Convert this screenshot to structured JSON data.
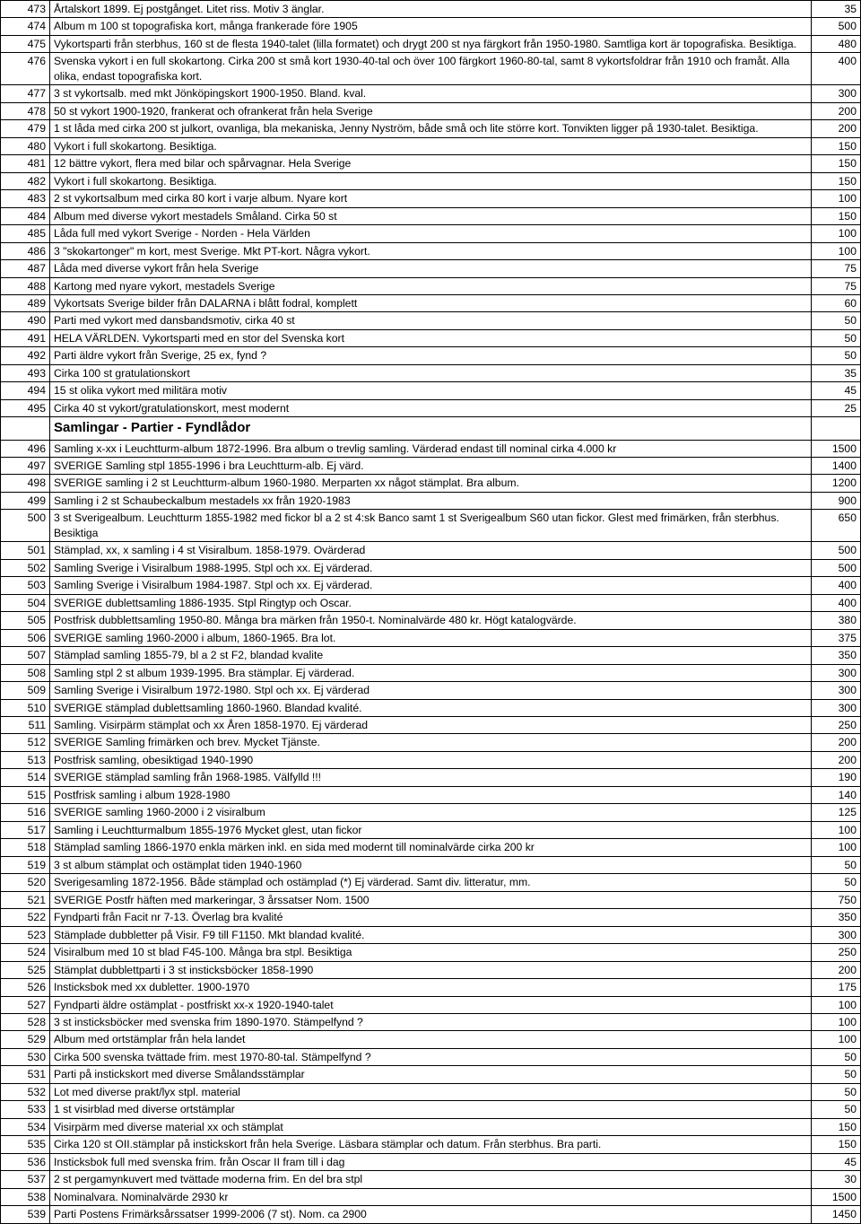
{
  "section_header": "Samlingar - Partier - Fyndlådor",
  "rows": [
    {
      "n": "473",
      "d": "Årtalskort 1899. Ej postgånget. Litet riss. Motiv 3 änglar.",
      "p": "35"
    },
    {
      "n": "474",
      "d": "Album m 100 st topografiska kort, många frankerade före 1905",
      "p": "500"
    },
    {
      "n": "475",
      "d": "Vykortsparti från sterbhus, 160 st de flesta 1940-talet (lilla formatet) och drygt 200 st nya färgkort från 1950-1980. Samtliga kort är topografiska. Besiktiga.",
      "p": "480"
    },
    {
      "n": "476",
      "d": "Svenska vykort i en full skokartong. Cirka 200 st små kort 1930-40-tal och över 100 färgkort 1960-80-tal, samt 8 vykortsfoldrar från 1910 och framåt. Alla olika, endast topografiska kort.",
      "p": "400"
    },
    {
      "n": "477",
      "d": "3 st vykortsalb. med mkt Jönköpingskort 1900-1950. Bland. kval.",
      "p": "300"
    },
    {
      "n": "478",
      "d": "50 st vykort 1900-1920, frankerat och ofrankerat från hela Sverige",
      "p": "200"
    },
    {
      "n": "479",
      "d": "1 st låda med cirka 200 st julkort, ovanliga, bla mekaniska, Jenny Nyström, både små och lite större kort. Tonvikten ligger på 1930-talet. Besiktiga.",
      "p": "200"
    },
    {
      "n": "480",
      "d": "Vykort i full skokartong. Besiktiga.",
      "p": "150"
    },
    {
      "n": "481",
      "d": "12 bättre vykort, flera med bilar och spårvagnar. Hela Sverige",
      "p": "150"
    },
    {
      "n": "482",
      "d": "Vykort i full skokartong. Besiktiga.",
      "p": "150"
    },
    {
      "n": "483",
      "d": "2 st vykortsalbum med cirka 80 kort i varje album. Nyare kort",
      "p": "100"
    },
    {
      "n": "484",
      "d": "Album med diverse vykort mestadels Småland. Cirka 50 st",
      "p": "150"
    },
    {
      "n": "485",
      "d": "Låda full med vykort Sverige - Norden - Hela Världen",
      "p": "100"
    },
    {
      "n": "486",
      "d": "3 \"skokartonger\" m kort, mest Sverige. Mkt PT-kort. Några vykort.",
      "p": "100"
    },
    {
      "n": "487",
      "d": "Låda med diverse vykort från hela Sverige",
      "p": "75"
    },
    {
      "n": "488",
      "d": "Kartong med nyare vykort, mestadels Sverige",
      "p": "75"
    },
    {
      "n": "489",
      "d": "Vykortsats Sverige bilder från DALARNA i blått fodral, komplett",
      "p": "60"
    },
    {
      "n": "490",
      "d": "Parti med vykort med dansbandsmotiv, cirka 40 st",
      "p": "50"
    },
    {
      "n": "491",
      "d": "HELA VÄRLDEN. Vykortsparti med en stor del Svenska kort",
      "p": "50"
    },
    {
      "n": "492",
      "d": "Parti äldre vykort från Sverige, 25 ex, fynd ?",
      "p": "50"
    },
    {
      "n": "493",
      "d": "Cirka 100 st gratulationskort",
      "p": "35"
    },
    {
      "n": "494",
      "d": "15 st olika vykort med militära motiv",
      "p": "45"
    },
    {
      "n": "495",
      "d": "Cirka 40 st vykort/gratulationskort, mest modernt",
      "p": "25"
    },
    {
      "header": true
    },
    {
      "n": "496",
      "d": "Samling x-xx i Leuchtturm-album 1872-1996. Bra album o trevlig samling. Värderad endast till nominal cirka 4.000 kr",
      "p": "1500"
    },
    {
      "n": "497",
      "d": "SVERIGE Samling stpl 1855-1996 i bra Leuchtturm-alb. Ej värd.",
      "p": "1400"
    },
    {
      "n": "498",
      "d": "SVERIGE samling i 2 st Leuchtturm-album 1960-1980. Merparten xx något stämplat. Bra album.",
      "p": "1200"
    },
    {
      "n": "499",
      "d": "Samling i 2 st Schaubeckalbum mestadels xx från 1920-1983",
      "p": "900"
    },
    {
      "n": "500",
      "d": "3 st Sverigealbum. Leuchtturm 1855-1982 med fickor bl a 2 st 4:sk Banco samt 1 st Sverigealbum S60 utan fickor. Glest med frimärken, från sterbhus. Besiktiga",
      "p": "650"
    },
    {
      "n": "501",
      "d": "Stämplad, xx, x samling i 4 st Visiralbum. 1858-1979. Ovärderad",
      "p": "500"
    },
    {
      "n": "502",
      "d": "Samling Sverige i Visiralbum 1988-1995. Stpl och xx. Ej värderad.",
      "p": "500"
    },
    {
      "n": "503",
      "d": "Samling Sverige i Visiralbum 1984-1987. Stpl och xx. Ej värderad.",
      "p": "400"
    },
    {
      "n": "504",
      "d": "SVERIGE dublettsamling 1886-1935. Stpl Ringtyp och Oscar.",
      "p": "400"
    },
    {
      "n": "505",
      "d": "Postfrisk dubblettsamling 1950-80. Många bra märken från 1950-t. Nominalvärde 480 kr. Högt katalogvärde.",
      "p": "380"
    },
    {
      "n": "506",
      "d": "SVERIGE samling 1960-2000 i album, 1860-1965. Bra lot.",
      "p": "375"
    },
    {
      "n": "507",
      "d": "Stämplad samling 1855-79, bl a 2 st F2, blandad kvalite",
      "p": "350"
    },
    {
      "n": "508",
      "d": "Samling stpl 2 st album 1939-1995. Bra stämplar. Ej värderad.",
      "p": "300"
    },
    {
      "n": "509",
      "d": "Samling Sverige i Visiralbum 1972-1980. Stpl och xx. Ej värderad",
      "p": "300"
    },
    {
      "n": "510",
      "d": "SVERIGE stämplad dublettsamling 1860-1960. Blandad kvalité.",
      "p": "300"
    },
    {
      "n": "511",
      "d": "Samling. Visirpärm stämplat och xx Åren 1858-1970. Ej värderad",
      "p": "250"
    },
    {
      "n": "512",
      "d": "SVERIGE Samling frimärken och brev. Mycket Tjänste.",
      "p": "200"
    },
    {
      "n": "513",
      "d": "Postfrisk samling, obesiktigad 1940-1990",
      "p": "200"
    },
    {
      "n": "514",
      "d": "SVERIGE stämplad samling från 1968-1985. Välfylld !!!",
      "p": "190"
    },
    {
      "n": "515",
      "d": "Postfrisk samling i album 1928-1980",
      "p": "140"
    },
    {
      "n": "516",
      "d": "SVERIGE samling 1960-2000 i 2 visiralbum",
      "p": "125"
    },
    {
      "n": "517",
      "d": "Samling i Leuchtturmalbum 1855-1976 Mycket glest, utan fickor",
      "p": "100"
    },
    {
      "n": "518",
      "d": "Stämplad samling 1866-1970 enkla märken inkl. en sida med modernt till nominalvärde cirka 200 kr",
      "p": "100"
    },
    {
      "n": "519",
      "d": "3 st album stämplat och ostämplat tiden 1940-1960",
      "p": "50"
    },
    {
      "n": "520",
      "d": "Sverigesamling 1872-1956. Både stämplad och ostämplad (*) Ej värderad. Samt div. litteratur, mm.",
      "p": "50"
    },
    {
      "n": "521",
      "d": "SVERIGE Postfr häften med markeringar, 3 årssatser Nom. 1500",
      "p": "750"
    },
    {
      "n": "522",
      "d": "Fyndparti från Facit nr 7-13. Överlag bra kvalité",
      "p": "350"
    },
    {
      "n": "523",
      "d": "Stämplade dubbletter på Visir. F9 till F1150. Mkt blandad kvalité.",
      "p": "300"
    },
    {
      "n": "524",
      "d": "Visiralbum med 10 st blad F45-100. Många bra stpl. Besiktiga",
      "p": "250"
    },
    {
      "n": "525",
      "d": "Stämplat dubblettparti i 3 st insticksböcker 1858-1990",
      "p": "200"
    },
    {
      "n": "526",
      "d": "Insticksbok med xx dubletter. 1900-1970",
      "p": "175"
    },
    {
      "n": "527",
      "d": "Fyndparti äldre ostämplat - postfriskt xx-x 1920-1940-talet",
      "p": "100"
    },
    {
      "n": "528",
      "d": "3 st insticksböcker med svenska frim 1890-1970. Stämpelfynd ?",
      "p": "100"
    },
    {
      "n": "529",
      "d": "Album med ortstämplar från hela landet",
      "p": "100"
    },
    {
      "n": "530",
      "d": "Cirka 500 svenska tvättade frim. mest 1970-80-tal. Stämpelfynd ?",
      "p": "50"
    },
    {
      "n": "531",
      "d": "Parti på instickskort med diverse Smålandsstämplar",
      "p": "50"
    },
    {
      "n": "532",
      "d": "Lot med diverse prakt/lyx stpl. material",
      "p": "50"
    },
    {
      "n": "533",
      "d": "1 st visirblad med diverse ortstämplar",
      "p": "50"
    },
    {
      "n": "534",
      "d": "Visirpärm med diverse material xx och stämplat",
      "p": "150"
    },
    {
      "n": "535",
      "d": "Cirka 120 st OII.stämplar på instickskort från hela Sverige. Läsbara stämplar och datum. Från sterbhus. Bra parti.",
      "p": "150"
    },
    {
      "n": "536",
      "d": "Insticksbok full med svenska frim. från Oscar II fram till i dag",
      "p": "45"
    },
    {
      "n": "537",
      "d": "2 st pergamynkuvert med tvättade moderna frim. En del bra stpl",
      "p": "30"
    },
    {
      "n": "538",
      "d": "Nominalvara. Nominalvärde 2930 kr",
      "p": "1500"
    },
    {
      "n": "539",
      "d": "Parti Postens Frimärksårssatser 1999-2006 (7 st). Nom. ca 2900",
      "p": "1450"
    }
  ]
}
